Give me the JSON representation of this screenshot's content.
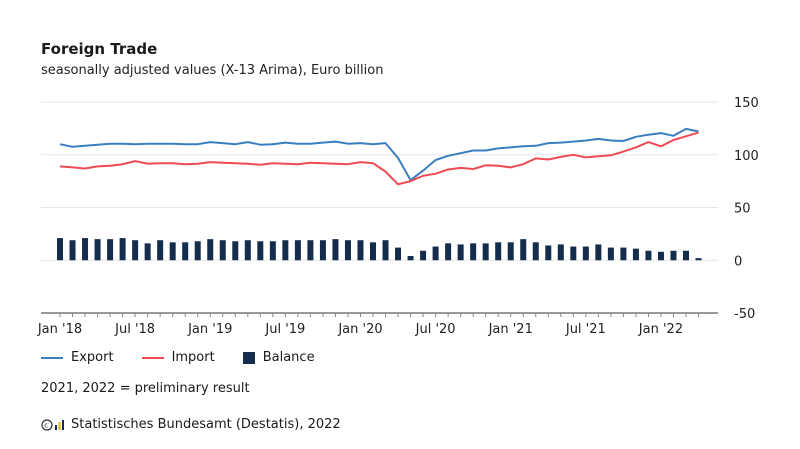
{
  "header": {
    "title": "Foreign Trade",
    "subtitle": "seasonally adjusted values (X-13 Arima), Euro billion"
  },
  "footer": {
    "note": "2021, 2022 = preliminary result",
    "source": "Statistisches Bundesamt (Destatis), 2022"
  },
  "colors": {
    "export": "#3a7ebf",
    "import": "#ee4b55",
    "balance": "#142d4c",
    "grid": "#e6e6e6",
    "axis": "#333333"
  },
  "chart_data": {
    "type": "bar+line",
    "title": "Foreign Trade",
    "subtitle": "seasonally adjusted values (X-13 Arima), Euro billion",
    "ylim": [
      -50,
      150
    ],
    "yticks": [
      -50,
      0,
      50,
      100,
      150
    ],
    "grid": true,
    "legend_position": "bottom-left",
    "start_month": "Jan 2018",
    "months_count": 52,
    "xtick_labels": [
      {
        "index": 0,
        "label": "Jan '18"
      },
      {
        "index": 6,
        "label": "Jul '18"
      },
      {
        "index": 12,
        "label": "Jan '19"
      },
      {
        "index": 18,
        "label": "Jul '19"
      },
      {
        "index": 24,
        "label": "Jan '20"
      },
      {
        "index": 30,
        "label": "Jul '20"
      },
      {
        "index": 36,
        "label": "Jan '21"
      },
      {
        "index": 42,
        "label": "Jul '21"
      },
      {
        "index": 48,
        "label": "Jan '22"
      }
    ],
    "series": [
      {
        "name": "Export",
        "type": "line",
        "values": [
          110,
          107.5,
          108.5,
          109.5,
          110.5,
          110.5,
          110,
          110.5,
          110.5,
          110.5,
          110,
          110,
          112,
          111,
          110,
          112,
          109.5,
          110,
          111.5,
          110.5,
          110.5,
          111.5,
          112.5,
          110.5,
          111,
          110,
          111,
          97,
          76,
          85,
          95,
          99,
          101.5,
          104,
          104,
          106,
          107,
          108,
          108.5,
          111,
          111.5,
          112.5,
          113.5,
          115,
          113.5,
          113,
          117,
          119,
          120.5,
          118,
          124.5,
          122
        ]
      },
      {
        "name": "Import",
        "type": "line",
        "values": [
          89,
          88,
          87,
          89,
          89.5,
          91,
          94,
          91.5,
          92,
          92,
          91,
          91.5,
          93,
          92.5,
          92,
          91.5,
          90.5,
          92,
          91.5,
          91,
          92.5,
          92,
          91.5,
          91,
          93,
          92,
          84,
          72,
          75,
          80,
          82,
          86,
          87.5,
          86.5,
          90,
          89.5,
          88,
          91,
          96.5,
          95.5,
          98,
          100,
          97.5,
          98.5,
          99.5,
          103,
          107,
          112,
          108,
          114,
          117.5,
          121
        ]
      },
      {
        "name": "Balance",
        "type": "bar",
        "values": [
          21,
          19,
          21,
          20,
          20,
          21,
          19,
          16,
          19,
          17,
          17,
          18,
          20,
          19,
          18,
          19,
          18,
          18,
          19,
          19,
          19,
          19,
          20,
          19,
          19,
          17,
          19,
          12,
          4,
          9,
          13,
          16,
          15,
          16,
          16,
          17,
          17,
          20,
          17,
          14,
          15,
          13,
          13,
          15,
          12,
          12,
          11,
          9,
          8,
          9,
          9,
          2
        ]
      }
    ]
  }
}
